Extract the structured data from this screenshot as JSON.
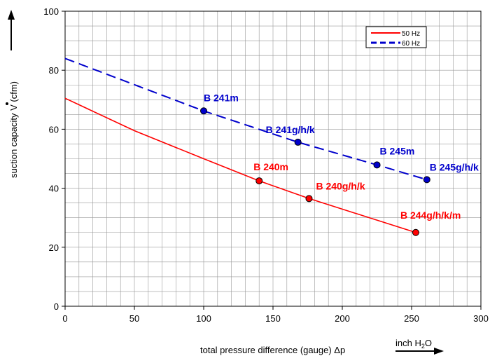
{
  "chart_data": {
    "type": "line",
    "xlabel": "total pressure difference (gauge)  Δp",
    "xunit_main": "inch H",
    "xunit_sub": "2",
    "xunit_end": "O",
    "ylabel": "suction capacity V (cfm)",
    "xlim": [
      0,
      300
    ],
    "ylim": [
      0,
      100
    ],
    "x_ticks": [
      0,
      50,
      100,
      150,
      200,
      250,
      300
    ],
    "y_ticks": [
      0,
      20,
      40,
      60,
      80,
      100
    ],
    "x_tick_labels": [
      "0",
      "50",
      "100",
      "150",
      "200",
      "250",
      "300"
    ],
    "y_tick_labels": [
      "0",
      "20",
      "40",
      "60",
      "80",
      "100"
    ],
    "grid": true,
    "legend_position": "top-right",
    "series": [
      {
        "name": "50 Hz",
        "color": "#ff0000",
        "style": "solid",
        "x": [
          0,
          50,
          100,
          140,
          176,
          253
        ],
        "y": [
          70.5,
          59.5,
          50,
          42.5,
          36.5,
          25
        ],
        "points": [
          {
            "x": 140,
            "y": 42.5,
            "label": "B 240m"
          },
          {
            "x": 176,
            "y": 36.5,
            "label": "B 240g/h/k"
          },
          {
            "x": 253,
            "y": 25,
            "label": "B 244g/h/k/m"
          }
        ]
      },
      {
        "name": "60 Hz",
        "color": "#0000cc",
        "style": "dashed",
        "x": [
          0,
          100,
          168,
          225,
          261
        ],
        "y": [
          84,
          66.2,
          55.6,
          47.9,
          42.9
        ],
        "points": [
          {
            "x": 100,
            "y": 66.2,
            "label": "B 241m"
          },
          {
            "x": 168,
            "y": 55.6,
            "label": "B 241g/h/k"
          },
          {
            "x": 225,
            "y": 47.9,
            "label": "B 245m"
          },
          {
            "x": 261,
            "y": 42.9,
            "label": "B 245g/h/k"
          }
        ]
      }
    ]
  }
}
